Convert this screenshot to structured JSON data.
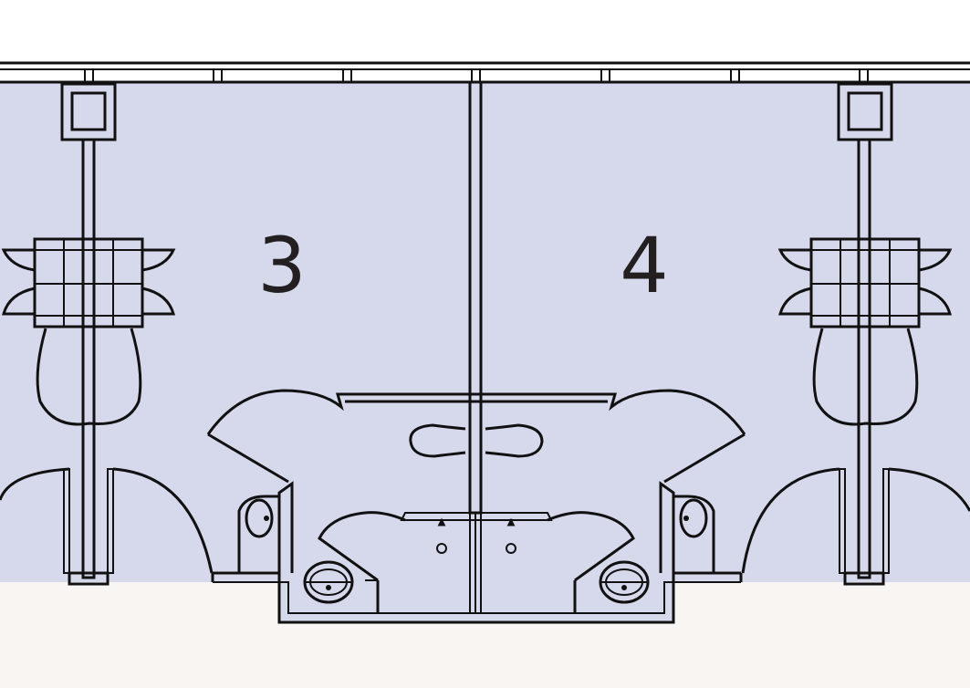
{
  "rooms": [
    {
      "number": "3"
    },
    {
      "number": "4"
    }
  ],
  "colors": {
    "room_fill": "#d6d9ec",
    "corridor_fill": "#f8f5f2",
    "background": "#ffffff",
    "line": "#111111",
    "text": "#231f20"
  }
}
